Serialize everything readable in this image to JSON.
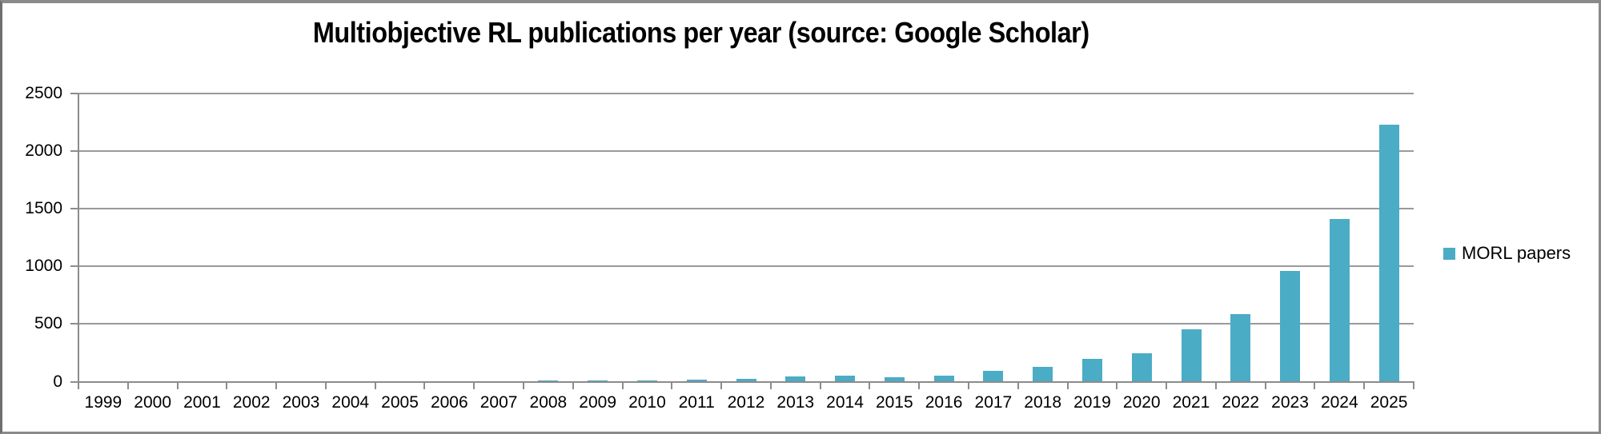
{
  "chart_data": {
    "type": "bar",
    "title": "Multiobjective RL publications per year (source: Google Scholar)",
    "categories": [
      "1999",
      "2000",
      "2001",
      "2002",
      "2003",
      "2004",
      "2005",
      "2006",
      "2007",
      "2008",
      "2009",
      "2010",
      "2011",
      "2012",
      "2013",
      "2014",
      "2015",
      "2016",
      "2017",
      "2018",
      "2019",
      "2020",
      "2021",
      "2022",
      "2023",
      "2024",
      "2025"
    ],
    "values": [
      0,
      0,
      0,
      0,
      0,
      0,
      0,
      0,
      0,
      10,
      10,
      12,
      18,
      26,
      44,
      50,
      40,
      55,
      97,
      125,
      195,
      245,
      455,
      585,
      960,
      1410,
      2230
    ],
    "series_name": "MORL papers",
    "xlabel": "",
    "ylabel": "",
    "ylim": [
      0,
      2500
    ],
    "yticks": [
      0,
      500,
      1000,
      1500,
      2000,
      2500
    ],
    "grid": "horizontal-only",
    "legend_position": "right",
    "colors": {
      "bar": "#4BACC6",
      "gridline": "#9A9A9A",
      "axis": "#8C8C8C",
      "text": "#000000",
      "background": "#FFFFFF",
      "frame_border": "#8A8A8A"
    }
  },
  "legend": {
    "label": "MORL papers",
    "swatch_color": "#4BACC6"
  }
}
